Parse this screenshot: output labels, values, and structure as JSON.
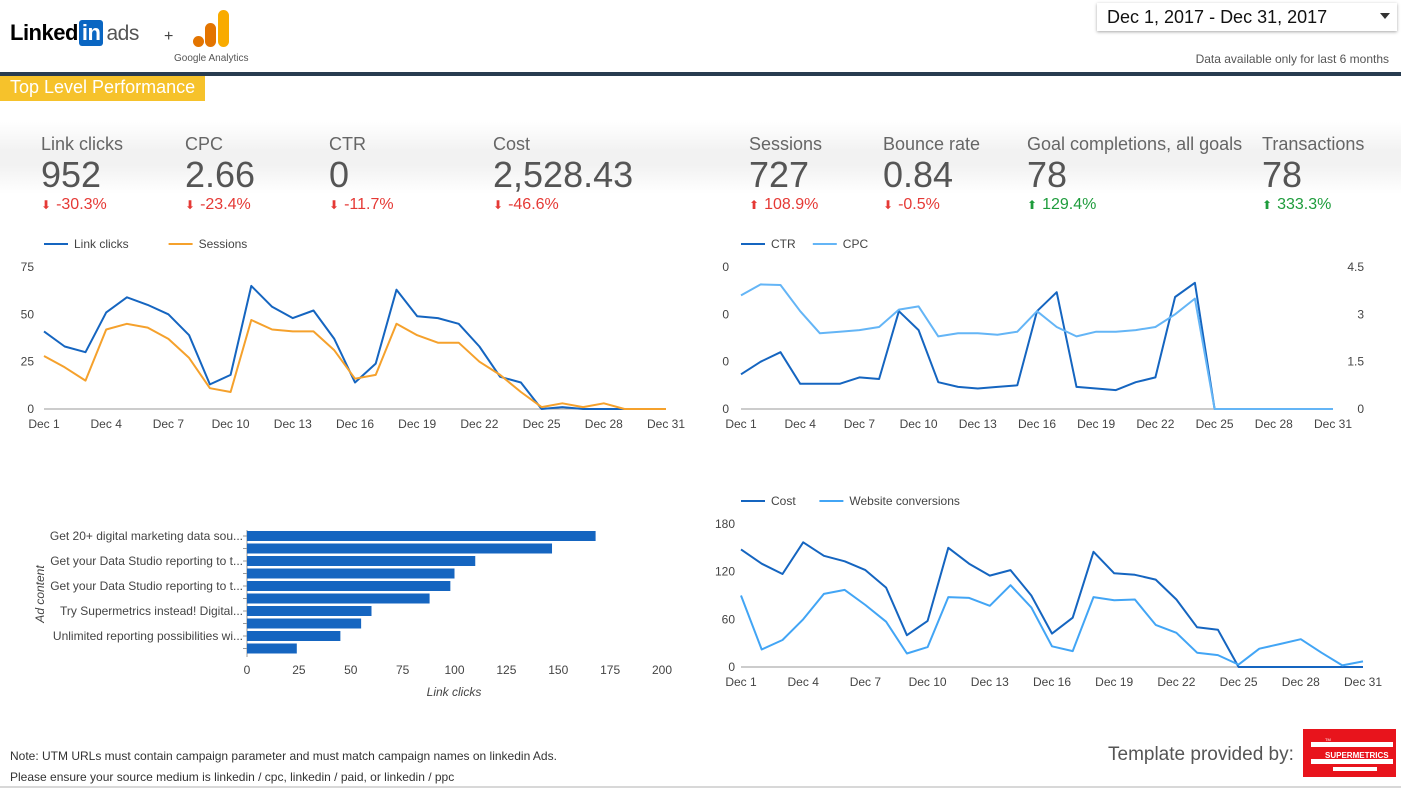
{
  "header": {
    "linkedin_word": "Linked",
    "linkedin_in": "in",
    "linkedin_ads": "ads",
    "plus": "+",
    "ga_label": "Google Analytics",
    "date_range": "Dec 1, 2017 - Dec 31, 2017",
    "data_note": "Data available only for last 6 months",
    "section_title": "Top Level Performance"
  },
  "kpis": [
    {
      "label": "Link clicks",
      "value": "952",
      "delta": "-30.3%",
      "direction": "down"
    },
    {
      "label": "CPC",
      "value": "2.66",
      "delta": "-23.4%",
      "direction": "down"
    },
    {
      "label": "CTR",
      "value": "0",
      "delta": "-11.7%",
      "direction": "down"
    },
    {
      "label": "Cost",
      "value": "2,528.43",
      "delta": "-46.6%",
      "direction": "down"
    },
    {
      "label": "Sessions",
      "value": "727",
      "delta": "108.9%",
      "direction": "up_bad"
    },
    {
      "label": "Bounce rate",
      "value": "0.84",
      "delta": "-0.5%",
      "direction": "down"
    },
    {
      "label": "Goal completions, all goals",
      "value": "78",
      "delta": "129.4%",
      "direction": "up_good"
    },
    {
      "label": "Transactions",
      "value": "78",
      "delta": "333.3%",
      "direction": "up_good"
    }
  ],
  "colors": {
    "dark_blue": "#1565c0",
    "light_blue": "#42a5f5",
    "orange": "#f5a12c",
    "red": "#e53935",
    "green": "#1e9c3c",
    "bar_blue": "#1565c0",
    "supermetrics_red": "#e8141c"
  },
  "chart_data": [
    {
      "type": "line",
      "legend": [
        "Link clicks",
        "Sessions"
      ],
      "x": [
        "Dec 1",
        "Dec 2",
        "Dec 3",
        "Dec 4",
        "Dec 5",
        "Dec 6",
        "Dec 7",
        "Dec 8",
        "Dec 9",
        "Dec 10",
        "Dec 11",
        "Dec 12",
        "Dec 13",
        "Dec 14",
        "Dec 15",
        "Dec 16",
        "Dec 17",
        "Dec 18",
        "Dec 19",
        "Dec 20",
        "Dec 21",
        "Dec 22",
        "Dec 23",
        "Dec 24",
        "Dec 25",
        "Dec 26",
        "Dec 27",
        "Dec 28",
        "Dec 29",
        "Dec 30",
        "Dec 31"
      ],
      "x_ticks": [
        "Dec 1",
        "Dec 4",
        "Dec 7",
        "Dec 10",
        "Dec 13",
        "Dec 16",
        "Dec 19",
        "Dec 22",
        "Dec 25",
        "Dec 28",
        "Dec 31"
      ],
      "y_ticks": [
        "75",
        "50",
        "25",
        "0"
      ],
      "ylim": [
        0,
        75
      ],
      "series": [
        {
          "name": "Link clicks",
          "color": "#1565c0",
          "values": [
            41,
            33,
            30,
            51,
            59,
            55,
            50,
            39,
            13,
            18,
            65,
            54,
            48,
            52,
            37,
            14,
            24,
            63,
            49,
            48,
            45,
            33,
            17,
            14,
            0,
            1,
            0,
            0,
            0,
            0,
            0
          ]
        },
        {
          "name": "Sessions",
          "color": "#f5a12c",
          "values": [
            28,
            22,
            15,
            42,
            45,
            43,
            37,
            27,
            11,
            9,
            47,
            42,
            41,
            41,
            31,
            16,
            18,
            45,
            39,
            35,
            35,
            25,
            18,
            9,
            1,
            3,
            1,
            3,
            0,
            0,
            0
          ]
        }
      ]
    },
    {
      "type": "line",
      "legend": [
        "CTR",
        "CPC"
      ],
      "x_ticks": [
        "Dec 1",
        "Dec 4",
        "Dec 7",
        "Dec 10",
        "Dec 13",
        "Dec 16",
        "Dec 19",
        "Dec 22",
        "Dec 25",
        "Dec 28",
        "Dec 31"
      ],
      "y_ticks_left": [
        "0",
        "0",
        "0",
        "0"
      ],
      "y_ticks_right": [
        "4.5",
        "3",
        "1.5",
        "0"
      ],
      "ylim": [
        0,
        4.5
      ],
      "series": [
        {
          "name": "CTR",
          "color": "#1565c0",
          "axis": "left",
          "values": [
            1.1,
            1.5,
            1.8,
            0.8,
            0.8,
            0.8,
            1.0,
            0.95,
            3.1,
            2.5,
            0.85,
            0.7,
            0.65,
            0.7,
            0.75,
            3.1,
            3.7,
            0.7,
            0.65,
            0.6,
            0.85,
            1.0,
            3.55,
            4.0,
            0,
            0,
            0,
            0,
            0,
            0,
            0
          ]
        },
        {
          "name": "CPC",
          "color": "#64b5f6",
          "axis": "right",
          "values": [
            3.6,
            3.95,
            3.93,
            3.1,
            2.4,
            2.45,
            2.5,
            2.6,
            3.15,
            3.25,
            2.3,
            2.4,
            2.4,
            2.35,
            2.45,
            3.1,
            2.6,
            2.3,
            2.45,
            2.45,
            2.5,
            2.6,
            3.0,
            3.5,
            0,
            0,
            0,
            0,
            0,
            0,
            0
          ]
        }
      ]
    },
    {
      "type": "bar",
      "orientation": "horizontal",
      "categories": [
        "Get 20+ digital marketing data sou...",
        "",
        "Get your Data Studio reporting to t...",
        "",
        "Get your Data Studio reporting to t...",
        "",
        "Try Supermetrics instead! Digital...",
        "",
        "Unlimited reporting possibilities wi...",
        ""
      ],
      "values": [
        168,
        147,
        110,
        100,
        98,
        88,
        60,
        55,
        45,
        24
      ],
      "xlabel": "Link clicks",
      "ylabel": "Ad content",
      "x_ticks": [
        "0",
        "25",
        "50",
        "75",
        "100",
        "125",
        "150",
        "175",
        "200"
      ],
      "xlim": [
        0,
        200
      ]
    },
    {
      "type": "line",
      "legend": [
        "Cost",
        "Website conversions"
      ],
      "x_ticks": [
        "Dec 1",
        "Dec 4",
        "Dec 7",
        "Dec 10",
        "Dec 13",
        "Dec 16",
        "Dec 19",
        "Dec 22",
        "Dec 25",
        "Dec 28",
        "Dec 31"
      ],
      "y_ticks": [
        "180",
        "120",
        "60",
        "0"
      ],
      "ylim": [
        0,
        180
      ],
      "series": [
        {
          "name": "Cost",
          "color": "#1565c0",
          "values": [
            148,
            130,
            117,
            157,
            140,
            133,
            122,
            100,
            40,
            58,
            150,
            130,
            115,
            122,
            90,
            42,
            62,
            145,
            118,
            116,
            110,
            85,
            50,
            47,
            0,
            0,
            0,
            0,
            0,
            0,
            0
          ]
        },
        {
          "name": "Website conversions",
          "color": "#42a5f5",
          "values": [
            90,
            22,
            34,
            60,
            92,
            97,
            78,
            57,
            17,
            25,
            88,
            87,
            77,
            103,
            75,
            26,
            20,
            88,
            84,
            85,
            53,
            43,
            18,
            15,
            3,
            23,
            29,
            35,
            18,
            2,
            7
          ]
        }
      ]
    }
  ],
  "footer": {
    "note_line1": "Note: UTM URLs must contain campaign parameter and must match campaign names on linkedin Ads.",
    "note_line2": "Please ensure your source medium is linkedin / cpc, linkedin / paid, or linkedin / ppc",
    "template_label": "Template provided by:",
    "logo_text": "SUPERMETRICS",
    "logo_tm": "TM"
  }
}
